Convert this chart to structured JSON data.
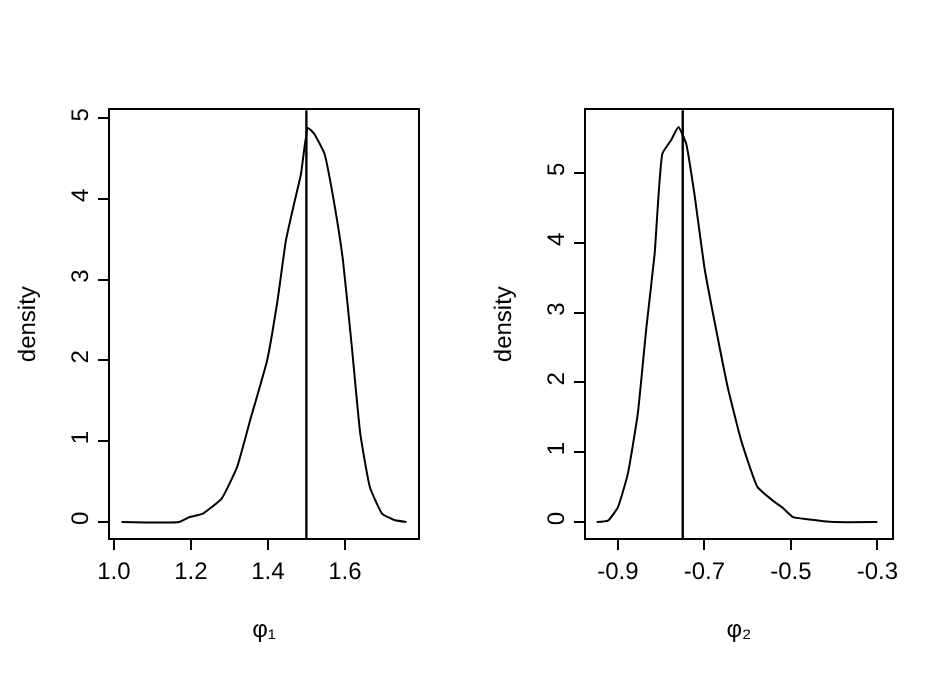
{
  "chart_data": [
    {
      "type": "line",
      "xlabel": "φ₁",
      "ylabel": "density",
      "color": "#000000",
      "legend": false,
      "marker": "none",
      "line_style": "solid",
      "x": [
        1.02,
        1.17,
        1.196,
        1.23,
        1.28,
        1.32,
        1.354,
        1.398,
        1.425,
        1.447,
        1.468,
        1.486,
        1.504,
        1.52,
        1.547,
        1.574,
        1.595,
        1.618,
        1.64,
        1.665,
        1.697,
        1.73,
        1.76
      ],
      "values": [
        0,
        0,
        0.06,
        0.1,
        0.29,
        0.68,
        1.26,
        2.0,
        2.74,
        3.49,
        3.94,
        4.31,
        4.88,
        4.81,
        4.56,
        3.9,
        3.24,
        2.17,
        1.09,
        0.43,
        0.1,
        0.02,
        0
      ],
      "xlim": [
        0.99,
        1.79
      ],
      "ylim": [
        -0.2,
        5.1
      ],
      "xticks": [
        {
          "value": 1.0,
          "label": "1.0"
        },
        1.2,
        1.4,
        1.6
      ],
      "yticks": [
        0,
        1,
        2,
        3,
        4,
        5
      ],
      "ref_lines": [
        {
          "axis": "x",
          "value": 1.5,
          "color": "#000000"
        }
      ]
    },
    {
      "type": "line",
      "xlabel": "φ₂",
      "ylabel": "density",
      "color": "#000000",
      "legend": false,
      "marker": "none",
      "line_style": "solid",
      "x": [
        -0.949,
        -0.923,
        -0.9,
        -0.877,
        -0.854,
        -0.834,
        -0.815,
        -0.797,
        -0.777,
        -0.76,
        -0.742,
        -0.723,
        -0.7,
        -0.677,
        -0.646,
        -0.615,
        -0.577,
        -0.538,
        -0.52,
        -0.495,
        -0.462,
        -0.4,
        -0.3
      ],
      "values": [
        0,
        0.02,
        0.21,
        0.69,
        1.55,
        2.79,
        3.84,
        5.28,
        5.47,
        5.66,
        5.42,
        4.7,
        3.65,
        2.89,
        1.93,
        1.17,
        0.5,
        0.29,
        0.21,
        0.07,
        0.04,
        0,
        0
      ],
      "xlim": [
        -0.974,
        -0.266
      ],
      "ylim": [
        -0.23,
        5.9
      ],
      "xticks": [
        -0.9,
        -0.7,
        -0.5,
        -0.3
      ],
      "yticks": [
        0,
        1,
        2,
        3,
        4,
        5
      ],
      "ref_lines": [
        {
          "axis": "x",
          "value": -0.75,
          "color": "#000000"
        }
      ]
    }
  ]
}
